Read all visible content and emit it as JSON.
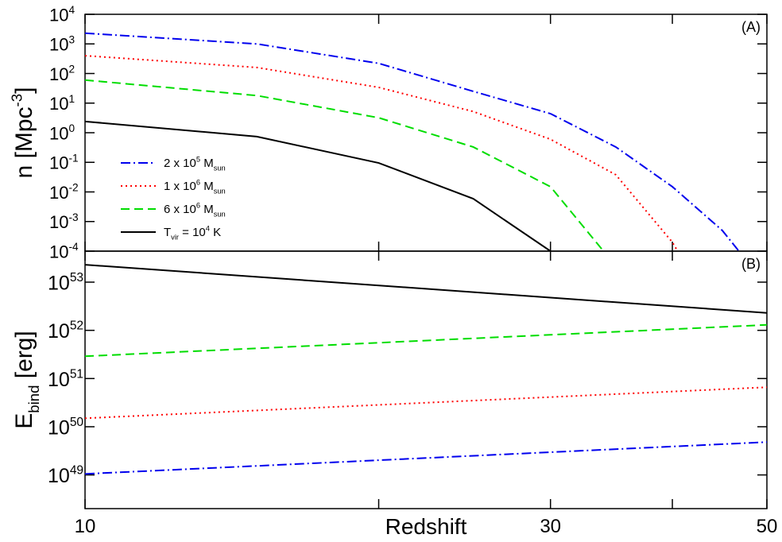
{
  "chart_data": [
    {
      "type": "line",
      "panel_label": "(A)",
      "xscale": "log",
      "yscale": "log",
      "xlim": [
        10,
        50
      ],
      "xticks": [
        10,
        30,
        50
      ],
      "xminor": [
        20,
        40
      ],
      "xtick_labels": false,
      "ylim": [
        0.0001,
        10000
      ],
      "yticks": [
        {
          "value": 0.0001,
          "label": "10",
          "exponent": "-4"
        },
        {
          "value": 0.001,
          "label": "10",
          "exponent": "-3"
        },
        {
          "value": 0.01,
          "label": "10",
          "exponent": "-2"
        },
        {
          "value": 0.1,
          "label": "10",
          "exponent": "-1"
        },
        {
          "value": 1,
          "label": "10",
          "exponent": "0"
        },
        {
          "value": 10,
          "label": "10",
          "exponent": "1"
        },
        {
          "value": 100,
          "label": "10",
          "exponent": "2"
        },
        {
          "value": 1000,
          "label": "10",
          "exponent": "3"
        },
        {
          "value": 10000,
          "label": "10",
          "exponent": "4"
        }
      ],
      "ylabel": [
        {
          "t": "n [Mpc"
        },
        {
          "t": "-3",
          "sup": true
        },
        {
          "t": "]"
        }
      ],
      "legend": "lower left",
      "series": [
        {
          "name": [
            {
              "t": "2 x 10"
            },
            {
              "t": "5",
              "sup": true
            },
            {
              "t": " M"
            },
            {
              "t": "sun",
              "sub": true
            }
          ],
          "color": "#0000ee",
          "dash": "dashdot",
          "x": [
            10,
            15,
            20,
            25,
            30,
            35,
            40,
            45,
            46.8
          ],
          "values": [
            2300,
            1000,
            220,
            25,
            4.4,
            0.33,
            0.015,
            0.0005,
            0.0001
          ]
        },
        {
          "name": [
            {
              "t": "1 x 10"
            },
            {
              "t": "6",
              "sup": true
            },
            {
              "t": " M"
            },
            {
              "t": "sun",
              "sub": true
            }
          ],
          "color": "#ff0000",
          "dash": "dotted",
          "x": [
            10,
            15,
            20,
            25,
            30,
            35,
            40,
            40.5
          ],
          "values": [
            400,
            160,
            34,
            5.2,
            0.6,
            0.038,
            0.0002,
            0.0001
          ]
        },
        {
          "name": [
            {
              "t": "6 x 10"
            },
            {
              "t": "6",
              "sup": true
            },
            {
              "t": " M"
            },
            {
              "t": "sun",
              "sub": true
            }
          ],
          "color": "#00dd00",
          "dash": "dashed",
          "x": [
            10,
            15,
            20,
            25,
            30,
            34
          ],
          "values": [
            60,
            18,
            3.2,
            0.33,
            0.015,
            0.0001
          ]
        },
        {
          "name": [
            {
              "t": "T"
            },
            {
              "t": "vir",
              "sub": true
            },
            {
              "t": " = 10"
            },
            {
              "t": "4",
              "sup": true
            },
            {
              "t": " K"
            }
          ],
          "color": "#000000",
          "dash": "solid",
          "x": [
            10,
            15,
            20,
            25,
            30
          ],
          "values": [
            2.4,
            0.74,
            0.095,
            0.0059,
            0.0001
          ]
        }
      ]
    },
    {
      "type": "line",
      "panel_label": "(B)",
      "xscale": "log",
      "yscale": "log",
      "xlim": [
        10,
        50
      ],
      "xticks": [
        10,
        30,
        50
      ],
      "xminor": [
        20,
        40
      ],
      "xlabel": "Redshift",
      "ylim": [
        2e+48,
        4.4e+53
      ],
      "yticks": [
        {
          "value": 1e+49,
          "label": "10",
          "exponent": "49"
        },
        {
          "value": 1e+50,
          "label": "10",
          "exponent": "50"
        },
        {
          "value": 1e+51,
          "label": "10",
          "exponent": "51"
        },
        {
          "value": 1e+52,
          "label": "10",
          "exponent": "52"
        },
        {
          "value": 1e+53,
          "label": "10",
          "exponent": "53"
        }
      ],
      "ylabel": [
        {
          "t": "E"
        },
        {
          "t": "bind",
          "sub": true
        },
        {
          "t": " [erg]"
        }
      ],
      "series": [
        {
          "color": "#0000ee",
          "dash": "dashdot",
          "x": [
            10,
            50
          ],
          "values": [
            1.05e+49,
            4.8e+49
          ]
        },
        {
          "color": "#ff0000",
          "dash": "dotted",
          "x": [
            10,
            50
          ],
          "values": [
            1.5e+50,
            6.6e+50
          ]
        },
        {
          "color": "#00dd00",
          "dash": "dashed",
          "x": [
            10,
            50
          ],
          "values": [
            2.9e+51,
            1.3e+52
          ]
        },
        {
          "color": "#000000",
          "dash": "solid",
          "x": [
            10,
            50
          ],
          "values": [
            2.3e+53,
            2.3e+52
          ]
        }
      ]
    }
  ]
}
